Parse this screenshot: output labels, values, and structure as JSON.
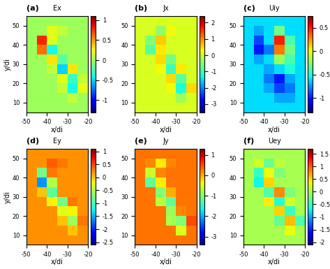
{
  "chart_data": [
    {
      "type": "heatmap",
      "label": "(a)",
      "title": "Ex",
      "xlabel": "x/di",
      "ylabel": "y/di",
      "xlim": [
        -50,
        -20
      ],
      "ylim": [
        5,
        55
      ],
      "xticks": [
        -50,
        -40,
        -30,
        -20
      ],
      "yticks": [
        10,
        20,
        30,
        40,
        50
      ],
      "x_edges": [
        -50,
        -45,
        -40,
        -35,
        -30,
        -25,
        -20
      ],
      "y_edges": [
        5,
        10,
        15,
        20,
        25,
        30,
        35,
        40,
        45,
        50,
        55
      ],
      "cells": [
        [
          0,
          0,
          0,
          0,
          0,
          0
        ],
        [
          0,
          0,
          0,
          0,
          0.1,
          0
        ],
        [
          0,
          0,
          0,
          0.1,
          -0.4,
          0.2
        ],
        [
          0,
          0,
          0,
          0.2,
          -0.3,
          0.1
        ],
        [
          0,
          0,
          0.1,
          -0.5,
          0.3,
          0
        ],
        [
          0,
          0,
          0.3,
          -0.2,
          0,
          0
        ],
        [
          0,
          0.6,
          -0.4,
          0,
          0,
          0
        ],
        [
          0,
          0.8,
          0.2,
          0,
          0,
          0
        ],
        [
          0,
          0,
          0.2,
          0.1,
          0,
          0
        ],
        [
          0,
          0,
          0,
          0,
          0,
          0
        ]
      ],
      "colorbar_range": [
        -1.3,
        1.1
      ],
      "colorbar_ticks": [
        -1,
        -0.5,
        0,
        0.5,
        1
      ]
    },
    {
      "type": "heatmap",
      "label": "(b)",
      "title": "Jx",
      "xlabel": "x/di",
      "xlim": [
        -50,
        -20
      ],
      "ylim": [
        5,
        55
      ],
      "xticks": [
        -50,
        -40,
        -30,
        -20
      ],
      "yticks": [
        10,
        20,
        30,
        40,
        50
      ],
      "x_edges": [
        -50,
        -45,
        -40,
        -35,
        -30,
        -25,
        -20
      ],
      "y_edges": [
        5,
        10,
        15,
        20,
        25,
        30,
        35,
        40,
        45,
        50,
        55
      ],
      "cells": [
        [
          0.1,
          0.1,
          0.1,
          0.1,
          0.1,
          0.1
        ],
        [
          0.1,
          0.1,
          0.1,
          0.1,
          -0.3,
          0.1
        ],
        [
          0.1,
          0.1,
          0.1,
          0.3,
          -1.2,
          0.5
        ],
        [
          0.1,
          0.1,
          0.1,
          0.5,
          -0.8,
          0.1
        ],
        [
          0.1,
          0.1,
          0.3,
          -1.0,
          0.4,
          0.1
        ],
        [
          0.1,
          0.1,
          0.5,
          -0.6,
          0.1,
          0.1
        ],
        [
          0.1,
          -0.8,
          0.4,
          0.1,
          0.1,
          0.1
        ],
        [
          0.1,
          -0.5,
          0.6,
          0.1,
          0.1,
          0.1
        ],
        [
          0.1,
          0.1,
          -0.4,
          0.3,
          0.1,
          0.1
        ],
        [
          0.1,
          0.1,
          0.1,
          0.1,
          0.1,
          0.1
        ]
      ],
      "colorbar_range": [
        -3.5,
        2.4
      ],
      "colorbar_ticks": [
        -3,
        -2,
        -1,
        0,
        1,
        2
      ]
    },
    {
      "type": "heatmap",
      "label": "(c)",
      "title": "Uiy",
      "xlabel": "x/di",
      "xlim": [
        -50,
        -20
      ],
      "ylim": [
        5,
        55
      ],
      "xticks": [
        -50,
        -40,
        -30,
        -20
      ],
      "yticks": [
        10,
        20,
        30,
        40,
        50
      ],
      "x_edges": [
        -50,
        -45,
        -40,
        -35,
        -30,
        -25,
        -20
      ],
      "y_edges": [
        5,
        10,
        15,
        20,
        25,
        30,
        35,
        40,
        45,
        50,
        55
      ],
      "cells": [
        [
          -0.6,
          -0.6,
          -0.6,
          -0.6,
          -0.6,
          -0.6
        ],
        [
          -0.6,
          -0.6,
          -0.6,
          -0.7,
          -0.7,
          -0.6
        ],
        [
          -0.6,
          -0.6,
          -0.7,
          -0.9,
          -0.8,
          -0.6
        ],
        [
          -0.6,
          -0.6,
          -0.8,
          -1.0,
          -0.7,
          -0.6
        ],
        [
          -0.6,
          -0.6,
          -0.7,
          -0.6,
          -0.5,
          -0.6
        ],
        [
          -0.6,
          -0.7,
          -0.6,
          -0.2,
          -0.4,
          -0.6
        ],
        [
          -0.6,
          -1.0,
          -0.8,
          0.3,
          -0.3,
          -0.6
        ],
        [
          -0.6,
          -0.9,
          -0.6,
          0.5,
          -0.4,
          -0.6
        ],
        [
          -0.6,
          -0.7,
          -0.6,
          -0.3,
          -0.6,
          -0.6
        ],
        [
          -0.6,
          -0.6,
          -0.6,
          -0.6,
          -0.6,
          -0.6
        ]
      ],
      "colorbar_range": [
        -1.3,
        0.75
      ],
      "colorbar_ticks": [
        -1,
        -0.5,
        0,
        0.5
      ]
    },
    {
      "type": "heatmap",
      "label": "(d)",
      "title": "Ey",
      "xlabel": "x/di",
      "ylabel": "y/di",
      "xlim": [
        -50,
        -20
      ],
      "ylim": [
        5,
        55
      ],
      "xticks": [
        -50,
        -40,
        -30,
        -20
      ],
      "yticks": [
        10,
        20,
        30,
        40,
        50
      ],
      "x_edges": [
        -50,
        -45,
        -40,
        -35,
        -30,
        -25,
        -20
      ],
      "y_edges": [
        5,
        10,
        15,
        20,
        25,
        30,
        35,
        40,
        45,
        50,
        55
      ],
      "cells": [
        [
          0.2,
          0.2,
          0.2,
          0.2,
          0.2,
          0.2
        ],
        [
          0.2,
          0.2,
          0.2,
          0.2,
          0,
          0.2
        ],
        [
          0.2,
          0.2,
          0.2,
          0,
          -0.6,
          0.3
        ],
        [
          0.2,
          0.2,
          0.2,
          -0.3,
          -0.2,
          0.2
        ],
        [
          0.2,
          0.2,
          -0.2,
          -0.8,
          0.3,
          0.2
        ],
        [
          0.2,
          0,
          -0.9,
          0.2,
          0.2,
          0.2
        ],
        [
          0.2,
          -1.6,
          -0.5,
          0.2,
          0.2,
          0.2
        ],
        [
          0.2,
          -0.8,
          0.3,
          0.2,
          0.2,
          0.2
        ],
        [
          0.2,
          0.2,
          0.4,
          0.3,
          0.2,
          0.2
        ],
        [
          0.2,
          0.2,
          0.2,
          0.2,
          0.2,
          0.2
        ]
      ],
      "colorbar_range": [
        -2.6,
        1.1
      ],
      "colorbar_ticks": [
        -2.5,
        -2,
        -1.5,
        -1,
        -0.5,
        0,
        0.5,
        1
      ]
    },
    {
      "type": "heatmap",
      "label": "(e)",
      "title": "Jy",
      "xlabel": "x/di",
      "xlim": [
        -50,
        -20
      ],
      "ylim": [
        5,
        55
      ],
      "xticks": [
        -50,
        -40,
        -30,
        -20
      ],
      "yticks": [
        10,
        20,
        30,
        40,
        50
      ],
      "x_edges": [
        -50,
        -45,
        -40,
        -35,
        -30,
        -25,
        -20
      ],
      "y_edges": [
        5,
        10,
        15,
        20,
        25,
        30,
        35,
        40,
        45,
        50,
        55
      ],
      "cells": [
        [
          0.3,
          0.3,
          0.3,
          0.3,
          0.3,
          0.3
        ],
        [
          0.3,
          0.3,
          0.3,
          0.3,
          -0.5,
          0.3
        ],
        [
          0.3,
          0.3,
          0.3,
          -0.8,
          -1.0,
          0.5
        ],
        [
          0.3,
          0.3,
          0.3,
          -0.9,
          0.2,
          0.3
        ],
        [
          0.3,
          0.3,
          -0.7,
          -1.2,
          0.3,
          0.3
        ],
        [
          0.3,
          0.3,
          -1.0,
          0,
          0.3,
          0.3
        ],
        [
          0.3,
          -1.2,
          -0.3,
          0.3,
          0.3,
          0.3
        ],
        [
          0.3,
          -0.6,
          0.2,
          0.3,
          0.3,
          0.3
        ],
        [
          0.3,
          0.2,
          -0.3,
          0.2,
          0.3,
          0.3
        ],
        [
          0.3,
          0.3,
          0.3,
          0.3,
          0.3,
          0.3
        ]
      ],
      "colorbar_range": [
        -3.4,
        1.3
      ],
      "colorbar_ticks": [
        -3,
        -2,
        -1,
        0,
        1
      ]
    },
    {
      "type": "heatmap",
      "label": "(f)",
      "title": "Uey",
      "xlabel": "x/di",
      "xlim": [
        -50,
        -20
      ],
      "ylim": [
        5,
        55
      ],
      "xticks": [
        -50,
        -40,
        -30,
        -20
      ],
      "yticks": [
        10,
        20,
        30,
        40,
        50
      ],
      "x_edges": [
        -50,
        -45,
        -40,
        -35,
        -30,
        -25,
        -20
      ],
      "y_edges": [
        5,
        10,
        15,
        20,
        25,
        30,
        35,
        40,
        45,
        50,
        55
      ],
      "cells": [
        [
          0,
          0,
          0,
          0,
          0,
          0
        ],
        [
          0,
          0,
          0,
          0,
          0.3,
          0
        ],
        [
          0,
          0,
          0,
          -0.3,
          0.6,
          -0.4
        ],
        [
          0,
          0,
          0,
          0.5,
          -0.5,
          0
        ],
        [
          0,
          0,
          0.4,
          -0.6,
          0.2,
          0
        ],
        [
          0,
          0,
          -0.4,
          0.8,
          -0.2,
          0
        ],
        [
          0,
          -0.7,
          0.5,
          0,
          0,
          0
        ],
        [
          0,
          -0.5,
          0.3,
          -0.2,
          0,
          0
        ],
        [
          0,
          0.2,
          -0.3,
          0.1,
          0,
          0
        ],
        [
          0,
          0,
          0,
          0,
          0,
          0
        ]
      ],
      "colorbar_range": [
        -2.1,
        1.7
      ],
      "colorbar_ticks": [
        -2,
        -1.5,
        -1,
        -0.5,
        0,
        0.5,
        1,
        1.5
      ]
    }
  ]
}
